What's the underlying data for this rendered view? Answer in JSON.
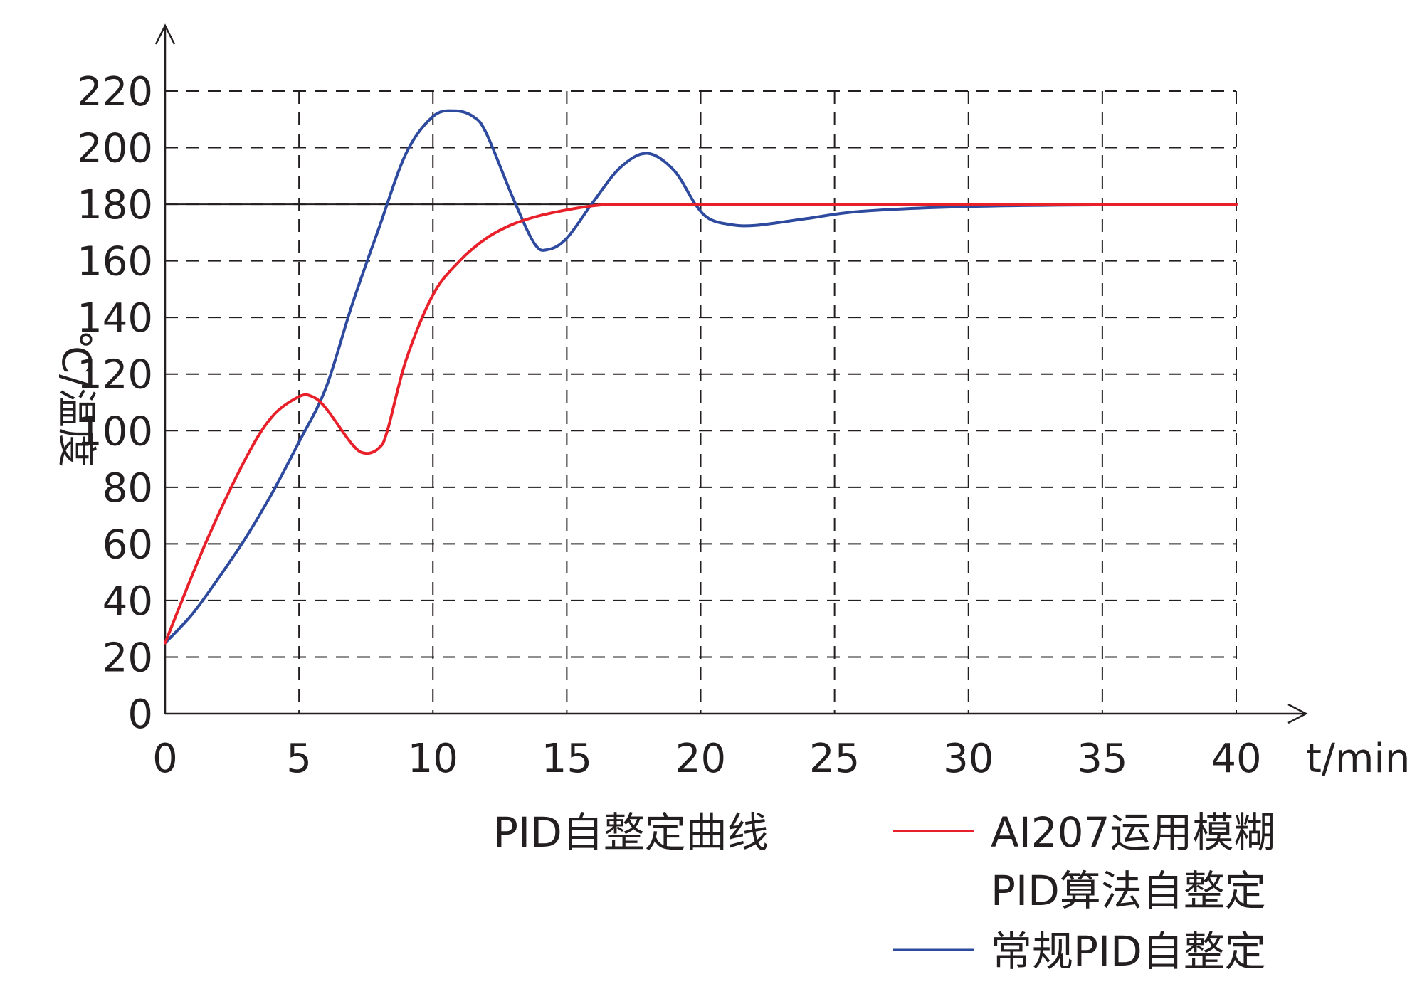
{
  "chart_data": {
    "type": "line",
    "title": "PID自整定曲线",
    "xlabel": "t/min",
    "ylabel": "℃/温度",
    "xlim": [
      0,
      40
    ],
    "ylim": [
      0,
      220
    ],
    "x_ticks": [
      "0",
      "5",
      "10",
      "15",
      "20",
      "25",
      "30",
      "35",
      "40"
    ],
    "y_ticks": [
      "0",
      "20",
      "40",
      "60",
      "80",
      "100",
      "120",
      "140",
      "160",
      "180",
      "200",
      "220"
    ],
    "grid": "dashed",
    "setpoint": 180,
    "series": [
      {
        "name": "AI207运用模糊PID算法自整定",
        "legend_lines": [
          "AI207运用模糊",
          "PID算法自整定"
        ],
        "color": "#e8202a",
        "points": [
          [
            0,
            25
          ],
          [
            1.5,
            60
          ],
          [
            3,
            90
          ],
          [
            4,
            105
          ],
          [
            5,
            112
          ],
          [
            5.5,
            112
          ],
          [
            6,
            108
          ],
          [
            7,
            95
          ],
          [
            7.5,
            92
          ],
          [
            8,
            94
          ],
          [
            8.3,
            100
          ],
          [
            9,
            125
          ],
          [
            10,
            148
          ],
          [
            11,
            160
          ],
          [
            12,
            168
          ],
          [
            13,
            173
          ],
          [
            14,
            176
          ],
          [
            15,
            178
          ],
          [
            16,
            179.5
          ],
          [
            17,
            180
          ],
          [
            20,
            180
          ],
          [
            25,
            180
          ],
          [
            30,
            180
          ],
          [
            35,
            180
          ],
          [
            40,
            180
          ]
        ]
      },
      {
        "name": "常规PID自整定",
        "color": "#2e4a9e",
        "points": [
          [
            0,
            25
          ],
          [
            1,
            35
          ],
          [
            2,
            48
          ],
          [
            3,
            62
          ],
          [
            4,
            78
          ],
          [
            5,
            96
          ],
          [
            6,
            115
          ],
          [
            7,
            145
          ],
          [
            8,
            172
          ],
          [
            9,
            198
          ],
          [
            10,
            211
          ],
          [
            10.8,
            213
          ],
          [
            11.5,
            211
          ],
          [
            12,
            205
          ],
          [
            13,
            182
          ],
          [
            13.8,
            166
          ],
          [
            14.3,
            164
          ],
          [
            15,
            168
          ],
          [
            16,
            181
          ],
          [
            17,
            193
          ],
          [
            18,
            198
          ],
          [
            19,
            192
          ],
          [
            19.8,
            180
          ],
          [
            20.3,
            175
          ],
          [
            21,
            173
          ],
          [
            22,
            172.5
          ],
          [
            24,
            175
          ],
          [
            26,
            177.5
          ],
          [
            30,
            179.2
          ],
          [
            35,
            179.8
          ],
          [
            40,
            180
          ]
        ]
      }
    ]
  }
}
